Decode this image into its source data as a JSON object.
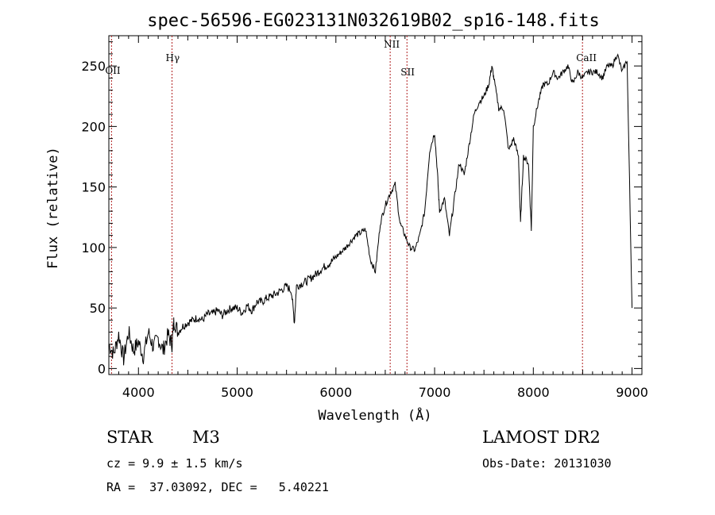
{
  "chart_data": {
    "type": "line",
    "title": "spec-56596-EG023131N032619B02_sp16-148.fits",
    "xlabel": "Wavelength (Å)",
    "ylabel": "Flux (relative)",
    "xlim": [
      3700,
      9100
    ],
    "ylim": [
      -5,
      275
    ],
    "xticks": [
      4000,
      5000,
      6000,
      7000,
      8000,
      9000
    ],
    "yticks": [
      0,
      50,
      100,
      150,
      200,
      250
    ],
    "series": [
      {
        "x": [
          3700,
          3750,
          3800,
          3850,
          3900,
          3950,
          4000,
          4050,
          4100,
          4150,
          4200,
          4250,
          4300,
          4340,
          4360,
          4400,
          4450,
          4500,
          4550,
          4600,
          4650,
          4700,
          4750,
          4800,
          4850,
          4900,
          4950,
          5000,
          5050,
          5100,
          5150,
          5200,
          5250,
          5300,
          5350,
          5400,
          5450,
          5500,
          5550,
          5580,
          5600,
          5650,
          5700,
          5750,
          5800,
          5850,
          5900,
          5950,
          6000,
          6050,
          6100,
          6150,
          6200,
          6250,
          6300,
          6350,
          6400,
          6450,
          6500,
          6550,
          6600,
          6650,
          6700,
          6750,
          6800,
          6850,
          6900,
          6950,
          7000,
          7030,
          7050,
          7100,
          7150,
          7200,
          7250,
          7300,
          7350,
          7400,
          7450,
          7500,
          7550,
          7580,
          7600,
          7650,
          7700,
          7750,
          7800,
          7850,
          7870,
          7900,
          7950,
          7980,
          8000,
          8050,
          8100,
          8150,
          8200,
          8250,
          8300,
          8350,
          8400,
          8450,
          8500,
          8550,
          8600,
          8650,
          8700,
          8750,
          8800,
          8850,
          8900,
          8950,
          9000
        ],
        "y": [
          20,
          12,
          28,
          8,
          30,
          15,
          22,
          10,
          30,
          18,
          25,
          15,
          28,
          20,
          40,
          30,
          35,
          38,
          40,
          42,
          40,
          45,
          45,
          48,
          44,
          48,
          50,
          50,
          46,
          52,
          48,
          55,
          55,
          58,
          60,
          62,
          65,
          68,
          64,
          38,
          68,
          70,
          72,
          75,
          78,
          82,
          85,
          88,
          92,
          96,
          100,
          105,
          110,
          112,
          115,
          90,
          80,
          120,
          135,
          145,
          152,
          120,
          110,
          100,
          98,
          110,
          130,
          180,
          195,
          160,
          130,
          140,
          110,
          140,
          170,
          160,
          185,
          210,
          220,
          225,
          235,
          250,
          240,
          215,
          215,
          180,
          190,
          175,
          120,
          175,
          170,
          115,
          200,
          220,
          235,
          235,
          245,
          240,
          245,
          250,
          235,
          245,
          240,
          245,
          245,
          245,
          240,
          250,
          250,
          260,
          245,
          255,
          50
        ]
      }
    ],
    "line_markers": [
      {
        "label": "OII",
        "x": 3727
      },
      {
        "label": "Hγ",
        "x": 4340
      },
      {
        "label": "NII",
        "x": 6550
      },
      {
        "label": "SII",
        "x": 6720
      },
      {
        "label": "CaII",
        "x": 8498
      }
    ],
    "grid": false,
    "legend": "none"
  },
  "info": {
    "class": "STAR",
    "subclass": "M3",
    "cz": "cz = 9.9 ± 1.5 km/s",
    "coords": "RA =  37.03092, DEC =   5.40221",
    "survey": "LAMOST DR2",
    "obs_date": "Obs-Date: 20131030"
  },
  "colors": {
    "spectrum": "#000000",
    "marker": "#b02020",
    "axes": "#000000"
  }
}
